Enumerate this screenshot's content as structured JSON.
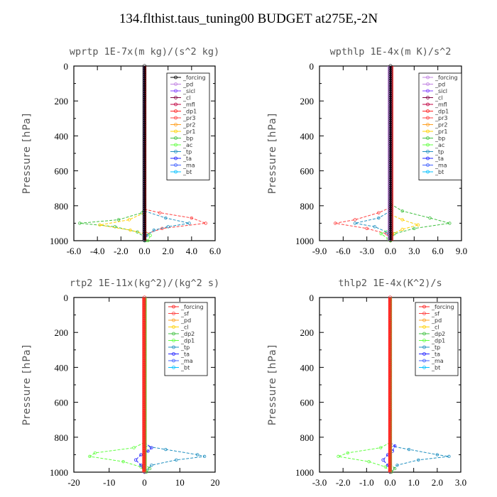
{
  "title": "134.flthist.taus_tuning00  BUDGET at275E,-2N",
  "chart_data": [
    {
      "type": "line",
      "title": "wprtp  1E-7x(m kg)/(s^2 kg)",
      "ylabel": "Pressure [hPa]",
      "xlim": [
        -6,
        6
      ],
      "ylim": [
        1000,
        0
      ],
      "y_reversed": true,
      "x_ticks": [
        "-6.0",
        "-4.0",
        "-2.0",
        "0.0",
        "2.0",
        "4.0",
        "6.0"
      ],
      "y_ticks": [
        "0",
        "200",
        "400",
        "600",
        "800",
        "1000"
      ],
      "legend": [
        "_forcing",
        "_pd",
        "_sicl",
        "_cl",
        "_mfl",
        "_dp1",
        "_pr3",
        "_pr2",
        "_pr1",
        "_bp",
        "_ac",
        "_tp",
        "_ta",
        "_ma",
        "_bt"
      ],
      "legend_colors": [
        "#000000",
        "#c080e0",
        "#8040ff",
        "#800040",
        "#c00040",
        "#ff2020",
        "#ff4040",
        "#ffa020",
        "#ffd000",
        "#40c040",
        "#60ff40",
        "#2090c0",
        "#2020ff",
        "#4060ff",
        "#00c0ff"
      ],
      "series": [
        {
          "name": "_bp",
          "color": "#40c040",
          "points": [
            [
              0,
              800
            ],
            [
              -0.2,
              840
            ],
            [
              -2.2,
              880
            ],
            [
              -5.5,
              900
            ],
            [
              -2.5,
              920
            ],
            [
              -0.6,
              950
            ],
            [
              0,
              980
            ],
            [
              0.1,
              1000
            ]
          ]
        },
        {
          "name": "_pr1",
          "color": "#ffd000",
          "points": [
            [
              0,
              840
            ],
            [
              -1.3,
              880
            ],
            [
              -3.8,
              910
            ],
            [
              -1.2,
              940
            ],
            [
              0,
              960
            ],
            [
              0,
              1000
            ]
          ]
        },
        {
          "name": "_pr3",
          "color": "#ff4040",
          "points": [
            [
              0,
              820
            ],
            [
              1.3,
              840
            ],
            [
              4.0,
              870
            ],
            [
              5.2,
              900
            ],
            [
              1.5,
              930
            ],
            [
              0.2,
              960
            ],
            [
              0,
              1000
            ]
          ]
        },
        {
          "name": "_tp",
          "color": "#2090c0",
          "points": [
            [
              0,
              830
            ],
            [
              1.8,
              870
            ],
            [
              3.8,
              900
            ],
            [
              2.0,
              920
            ],
            [
              0.8,
              940
            ],
            [
              0.2,
              970
            ],
            [
              0,
              1000
            ]
          ]
        },
        {
          "name": "_ac",
          "color": "#60ff40",
          "points": [
            [
              0,
              940
            ],
            [
              0.5,
              970
            ],
            [
              0.3,
              1000
            ]
          ]
        }
      ],
      "bt_min": -0.1,
      "bt_max": 0.1
    },
    {
      "type": "line",
      "title": "wpthlp  1E-4x(m K)/s^2",
      "ylabel": "Pressure [hPa]",
      "xlim": [
        -9,
        9
      ],
      "ylim": [
        1000,
        0
      ],
      "y_reversed": true,
      "x_ticks": [
        "-9.0",
        "-6.0",
        "-3.0",
        "0.0",
        "3.0",
        "6.0",
        "9.0"
      ],
      "y_ticks": [
        "0",
        "200",
        "400",
        "600",
        "800",
        "1000"
      ],
      "legend": [
        "_forcing",
        "_pd",
        "_sicl",
        "_cl",
        "_mfl",
        "_dp1",
        "_pr3",
        "_pr2",
        "_pr1",
        "_bp",
        "_ac",
        "_tp",
        "_ta",
        "_ma",
        "_bt"
      ],
      "legend_colors": [
        "#c080e0",
        "#c080e0",
        "#8040ff",
        "#800040",
        "#c00040",
        "#ff2020",
        "#ff4040",
        "#ffa020",
        "#ffd000",
        "#40c040",
        "#60ff40",
        "#2090c0",
        "#2020ff",
        "#4060ff",
        "#00c0ff"
      ],
      "series": [
        {
          "name": "_pr3",
          "color": "#ff4040",
          "points": [
            [
              0,
              810
            ],
            [
              -1.5,
              840
            ],
            [
              -4.5,
              880
            ],
            [
              -7.0,
              900
            ],
            [
              -3.0,
              930
            ],
            [
              -0.5,
              960
            ],
            [
              0,
              1000
            ]
          ]
        },
        {
          "name": "_bp",
          "color": "#40c040",
          "points": [
            [
              0,
              790
            ],
            [
              1.5,
              830
            ],
            [
              5.0,
              870
            ],
            [
              7.5,
              900
            ],
            [
              3.0,
              930
            ],
            [
              0.5,
              960
            ],
            [
              0,
              1000
            ]
          ]
        },
        {
          "name": "_tp",
          "color": "#2090c0",
          "points": [
            [
              0,
              830
            ],
            [
              -1.5,
              870
            ],
            [
              -4.5,
              900
            ],
            [
              -2.0,
              920
            ],
            [
              -0.5,
              950
            ],
            [
              0,
              1000
            ]
          ]
        },
        {
          "name": "_pr1",
          "color": "#ffd000",
          "points": [
            [
              0,
              850
            ],
            [
              1.5,
              880
            ],
            [
              3.5,
              910
            ],
            [
              1.5,
              935
            ],
            [
              0.3,
              960
            ],
            [
              0,
              1000
            ]
          ]
        },
        {
          "name": "_ac",
          "color": "#60ff40",
          "points": [
            [
              0,
              930
            ],
            [
              -1.2,
              960
            ],
            [
              -0.3,
              990
            ],
            [
              0,
              1000
            ]
          ]
        }
      ],
      "bt_min": -0.3,
      "bt_max": 0.3
    },
    {
      "type": "line",
      "title": "rtp2  1E-11x(kg^2)/(kg^2 s)",
      "ylabel": "Pressure [hPa]",
      "xlim": [
        -20,
        20
      ],
      "ylim": [
        1000,
        0
      ],
      "y_reversed": true,
      "x_ticks": [
        "-20",
        "-10",
        "0",
        "10",
        "20"
      ],
      "y_ticks": [
        "0",
        "200",
        "400",
        "600",
        "800",
        "1000"
      ],
      "legend": [
        "_forcing",
        "_sf",
        "_pd",
        "_cl",
        "_dp2",
        "_dp1",
        "_tp",
        "_ta",
        "_ma",
        "_bt"
      ],
      "legend_colors": [
        "#ff2020",
        "#ff4040",
        "#ffa020",
        "#ffd000",
        "#40c040",
        "#60ff40",
        "#2090c0",
        "#2020ff",
        "#4060ff",
        "#00c0ff"
      ],
      "series": [
        {
          "name": "_dp1",
          "color": "#60ff40",
          "points": [
            [
              0,
              830
            ],
            [
              -3,
              860
            ],
            [
              -14,
              890
            ],
            [
              -15.5,
              910
            ],
            [
              -6,
              940
            ],
            [
              -1,
              970
            ],
            [
              0,
              1000
            ]
          ]
        },
        {
          "name": "_tp",
          "color": "#2090c0",
          "points": [
            [
              0,
              850
            ],
            [
              6,
              870
            ],
            [
              15,
              900
            ],
            [
              17,
              910
            ],
            [
              9,
              930
            ],
            [
              2,
              960
            ],
            [
              0,
              1000
            ]
          ]
        },
        {
          "name": "_ta",
          "color": "#2020ff",
          "points": [
            [
              0,
              830
            ],
            [
              2,
              860
            ],
            [
              1,
              880
            ],
            [
              -1,
              900
            ],
            [
              -2.5,
              930
            ],
            [
              -1,
              960
            ],
            [
              0,
              1000
            ]
          ]
        },
        {
          "name": "_dp2",
          "color": "#40c040",
          "points": [
            [
              0,
              950
            ],
            [
              1.5,
              980
            ],
            [
              0.5,
              1000
            ]
          ]
        }
      ],
      "bt_min": -0.5,
      "bt_max": 0.5
    },
    {
      "type": "line",
      "title": "thlp2  1E-4x(K^2)/s",
      "ylabel": "Pressure [hPa]",
      "xlim": [
        -3,
        3
      ],
      "ylim": [
        1000,
        0
      ],
      "y_reversed": true,
      "x_ticks": [
        "-3.0",
        "-2.0",
        "-1.0",
        "0.0",
        "1.0",
        "2.0",
        "3.0"
      ],
      "y_ticks": [
        "0",
        "200",
        "400",
        "600",
        "800",
        "1000"
      ],
      "legend": [
        "_forcing",
        "_sf",
        "_pd",
        "_cl",
        "_dp2",
        "_dp1",
        "_tp",
        "_ta",
        "_ma",
        "_bt"
      ],
      "legend_colors": [
        "#ff2020",
        "#ff4040",
        "#ffa020",
        "#ffd000",
        "#40c040",
        "#60ff40",
        "#2090c0",
        "#2020ff",
        "#4060ff",
        "#00c0ff"
      ],
      "series": [
        {
          "name": "_dp1",
          "color": "#60ff40",
          "points": [
            [
              0,
              830
            ],
            [
              -0.4,
              860
            ],
            [
              -1.8,
              890
            ],
            [
              -2.2,
              910
            ],
            [
              -0.9,
              940
            ],
            [
              -0.2,
              970
            ],
            [
              0,
              1000
            ]
          ]
        },
        {
          "name": "_tp",
          "color": "#2090c0",
          "points": [
            [
              0,
              850
            ],
            [
              0.8,
              870
            ],
            [
              2.0,
              900
            ],
            [
              2.5,
              910
            ],
            [
              1.2,
              930
            ],
            [
              0.3,
              960
            ],
            [
              0,
              1000
            ]
          ]
        },
        {
          "name": "_ta",
          "color": "#2020ff",
          "points": [
            [
              0,
              830
            ],
            [
              0.2,
              850
            ],
            [
              0.1,
              880
            ],
            [
              -0.1,
              900
            ],
            [
              -0.3,
              930
            ],
            [
              -0.1,
              960
            ],
            [
              0,
              1000
            ]
          ]
        },
        {
          "name": "_dp2",
          "color": "#40c040",
          "points": [
            [
              0,
              950
            ],
            [
              0.2,
              980
            ],
            [
              0.05,
              1000
            ]
          ]
        }
      ],
      "bt_min": -0.05,
      "bt_max": 0.05
    }
  ]
}
